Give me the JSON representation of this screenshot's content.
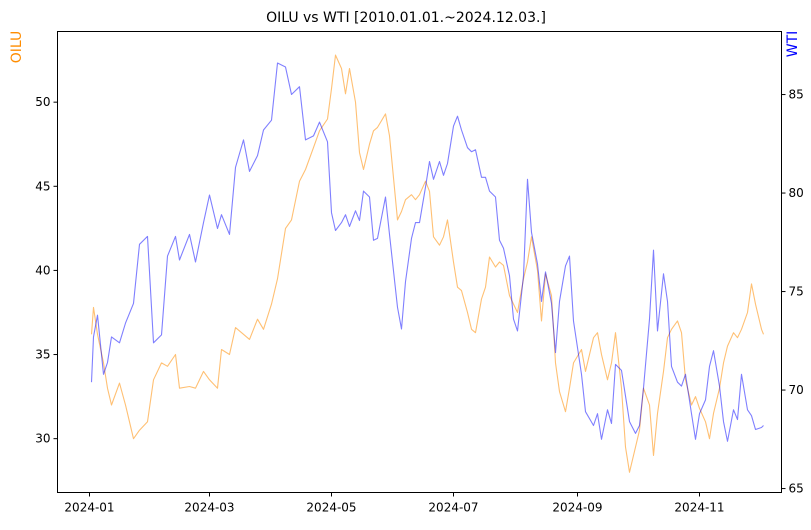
{
  "chart_data": {
    "type": "line",
    "title": "OILU vs WTI [2010.01.01.~2024.12.03.]",
    "xlabel": "",
    "x_ticks": [
      "2024-01",
      "2024-03",
      "2024-05",
      "2024-07",
      "2024-09",
      "2024-11"
    ],
    "x_range": [
      "2023-12-16",
      "2024-12-12"
    ],
    "grid": false,
    "y_left": {
      "label": "OILU",
      "label_color": "#ff8c00",
      "range": [
        26.8,
        54.2
      ],
      "ticks": [
        30,
        35,
        40,
        45,
        50
      ]
    },
    "y_right": {
      "label": "WTI",
      "label_color": "#0000ff",
      "range": [
        64.8,
        88.2
      ],
      "ticks": [
        65,
        70,
        75,
        80,
        85
      ]
    },
    "series": [
      {
        "name": "OILU",
        "axis": "left",
        "color": "#ff8c00",
        "points": [
          [
            "2024-01-02",
            36.2
          ],
          [
            "2024-01-03",
            37.8
          ],
          [
            "2024-01-05",
            36.2
          ],
          [
            "2024-01-08",
            34.5
          ],
          [
            "2024-01-10",
            33.0
          ],
          [
            "2024-01-12",
            32.0
          ],
          [
            "2024-01-16",
            33.3
          ],
          [
            "2024-01-19",
            32.0
          ],
          [
            "2024-01-23",
            30.0
          ],
          [
            "2024-01-26",
            30.5
          ],
          [
            "2024-01-30",
            31.0
          ],
          [
            "2024-02-02",
            33.5
          ],
          [
            "2024-02-06",
            34.5
          ],
          [
            "2024-02-09",
            34.3
          ],
          [
            "2024-02-13",
            35.0
          ],
          [
            "2024-02-15",
            33.0
          ],
          [
            "2024-02-20",
            33.1
          ],
          [
            "2024-02-23",
            33.0
          ],
          [
            "2024-02-27",
            34.0
          ],
          [
            "2024-03-01",
            33.5
          ],
          [
            "2024-03-05",
            33.0
          ],
          [
            "2024-03-07",
            35.3
          ],
          [
            "2024-03-11",
            35.0
          ],
          [
            "2024-03-14",
            36.6
          ],
          [
            "2024-03-18",
            36.2
          ],
          [
            "2024-03-21",
            35.9
          ],
          [
            "2024-03-25",
            37.1
          ],
          [
            "2024-03-28",
            36.5
          ],
          [
            "2024-04-01",
            38.0
          ],
          [
            "2024-04-04",
            39.5
          ],
          [
            "2024-04-08",
            42.5
          ],
          [
            "2024-04-11",
            43.0
          ],
          [
            "2024-04-15",
            45.3
          ],
          [
            "2024-04-18",
            46.0
          ],
          [
            "2024-04-22",
            47.3
          ],
          [
            "2024-04-25",
            48.3
          ],
          [
            "2024-04-29",
            49.0
          ],
          [
            "2024-05-01",
            50.8
          ],
          [
            "2024-05-03",
            52.8
          ],
          [
            "2024-05-06",
            52.0
          ],
          [
            "2024-05-08",
            50.5
          ],
          [
            "2024-05-10",
            52.0
          ],
          [
            "2024-05-13",
            50.0
          ],
          [
            "2024-05-15",
            47.0
          ],
          [
            "2024-05-17",
            46.0
          ],
          [
            "2024-05-20",
            47.5
          ],
          [
            "2024-05-22",
            48.3
          ],
          [
            "2024-05-24",
            48.5
          ],
          [
            "2024-05-28",
            49.3
          ],
          [
            "2024-05-30",
            48.0
          ],
          [
            "2024-06-03",
            43.0
          ],
          [
            "2024-06-05",
            43.5
          ],
          [
            "2024-06-07",
            44.2
          ],
          [
            "2024-06-10",
            44.5
          ],
          [
            "2024-06-12",
            44.2
          ],
          [
            "2024-06-14",
            44.5
          ],
          [
            "2024-06-17",
            45.3
          ],
          [
            "2024-06-19",
            44.7
          ],
          [
            "2024-06-21",
            42.0
          ],
          [
            "2024-06-24",
            41.5
          ],
          [
            "2024-06-26",
            42.0
          ],
          [
            "2024-06-28",
            43.0
          ],
          [
            "2024-07-01",
            40.5
          ],
          [
            "2024-07-03",
            39.0
          ],
          [
            "2024-07-05",
            38.8
          ],
          [
            "2024-07-08",
            37.5
          ],
          [
            "2024-07-10",
            36.5
          ],
          [
            "2024-07-12",
            36.3
          ],
          [
            "2024-07-15",
            38.3
          ],
          [
            "2024-07-17",
            39.0
          ],
          [
            "2024-07-19",
            40.8
          ],
          [
            "2024-07-22",
            40.2
          ],
          [
            "2024-07-24",
            40.5
          ],
          [
            "2024-07-26",
            40.3
          ],
          [
            "2024-07-29",
            38.5
          ],
          [
            "2024-07-31",
            38.0
          ],
          [
            "2024-08-02",
            37.5
          ],
          [
            "2024-08-05",
            39.5
          ],
          [
            "2024-08-07",
            40.5
          ],
          [
            "2024-08-09",
            42.0
          ],
          [
            "2024-08-12",
            40.0
          ],
          [
            "2024-08-14",
            37.0
          ],
          [
            "2024-08-16",
            39.8
          ],
          [
            "2024-08-19",
            38.5
          ],
          [
            "2024-08-21",
            34.5
          ],
          [
            "2024-08-23",
            32.8
          ],
          [
            "2024-08-26",
            31.6
          ],
          [
            "2024-08-28",
            33.0
          ],
          [
            "2024-08-30",
            34.5
          ],
          [
            "2024-09-03",
            35.3
          ],
          [
            "2024-09-05",
            34.0
          ],
          [
            "2024-09-09",
            36.0
          ],
          [
            "2024-09-11",
            36.3
          ],
          [
            "2024-09-13",
            35.0
          ],
          [
            "2024-09-16",
            33.5
          ],
          [
            "2024-09-18",
            34.5
          ],
          [
            "2024-09-20",
            36.3
          ],
          [
            "2024-09-23",
            33.0
          ],
          [
            "2024-09-25",
            29.5
          ],
          [
            "2024-09-27",
            28.0
          ],
          [
            "2024-09-30",
            29.5
          ],
          [
            "2024-10-02",
            30.5
          ],
          [
            "2024-10-04",
            33.0
          ],
          [
            "2024-10-07",
            32.0
          ],
          [
            "2024-10-09",
            29.0
          ],
          [
            "2024-10-11",
            31.5
          ],
          [
            "2024-10-14",
            34.0
          ],
          [
            "2024-10-16",
            36.0
          ],
          [
            "2024-10-18",
            36.5
          ],
          [
            "2024-10-21",
            37.0
          ],
          [
            "2024-10-23",
            36.3
          ],
          [
            "2024-10-25",
            33.5
          ],
          [
            "2024-10-28",
            32.0
          ],
          [
            "2024-10-30",
            32.5
          ],
          [
            "2024-11-01",
            31.8
          ],
          [
            "2024-11-04",
            31.0
          ],
          [
            "2024-11-06",
            30.0
          ],
          [
            "2024-11-08",
            31.5
          ],
          [
            "2024-11-11",
            33.0
          ],
          [
            "2024-11-13",
            34.5
          ],
          [
            "2024-11-15",
            35.5
          ],
          [
            "2024-11-18",
            36.3
          ],
          [
            "2024-11-20",
            36.0
          ],
          [
            "2024-11-22",
            36.5
          ],
          [
            "2024-11-25",
            37.5
          ],
          [
            "2024-11-27",
            39.2
          ],
          [
            "2024-11-29",
            38.0
          ],
          [
            "2024-12-02",
            36.5
          ],
          [
            "2024-12-03",
            36.2
          ]
        ]
      },
      {
        "name": "WTI",
        "axis": "right",
        "color": "#0000ff",
        "points": [
          [
            "2024-01-02",
            70.4
          ],
          [
            "2024-01-03",
            72.7
          ],
          [
            "2024-01-05",
            73.8
          ],
          [
            "2024-01-08",
            70.8
          ],
          [
            "2024-01-10",
            71.4
          ],
          [
            "2024-01-12",
            72.7
          ],
          [
            "2024-01-16",
            72.4
          ],
          [
            "2024-01-19",
            73.4
          ],
          [
            "2024-01-23",
            74.4
          ],
          [
            "2024-01-26",
            77.4
          ],
          [
            "2024-01-30",
            77.8
          ],
          [
            "2024-02-02",
            72.4
          ],
          [
            "2024-02-06",
            72.8
          ],
          [
            "2024-02-09",
            76.8
          ],
          [
            "2024-02-13",
            77.8
          ],
          [
            "2024-02-15",
            76.6
          ],
          [
            "2024-02-20",
            77.9
          ],
          [
            "2024-02-23",
            76.5
          ],
          [
            "2024-02-27",
            78.5
          ],
          [
            "2024-03-01",
            79.9
          ],
          [
            "2024-03-05",
            78.2
          ],
          [
            "2024-03-07",
            78.9
          ],
          [
            "2024-03-11",
            77.9
          ],
          [
            "2024-03-14",
            81.3
          ],
          [
            "2024-03-18",
            82.7
          ],
          [
            "2024-03-21",
            81.1
          ],
          [
            "2024-03-25",
            81.9
          ],
          [
            "2024-03-28",
            83.2
          ],
          [
            "2024-04-01",
            83.7
          ],
          [
            "2024-04-04",
            86.6
          ],
          [
            "2024-04-08",
            86.4
          ],
          [
            "2024-04-11",
            85.0
          ],
          [
            "2024-04-15",
            85.4
          ],
          [
            "2024-04-18",
            82.7
          ],
          [
            "2024-04-22",
            82.9
          ],
          [
            "2024-04-25",
            83.6
          ],
          [
            "2024-04-29",
            82.6
          ],
          [
            "2024-05-01",
            79.0
          ],
          [
            "2024-05-03",
            78.1
          ],
          [
            "2024-05-06",
            78.5
          ],
          [
            "2024-05-08",
            78.9
          ],
          [
            "2024-05-10",
            78.3
          ],
          [
            "2024-05-13",
            79.1
          ],
          [
            "2024-05-15",
            78.6
          ],
          [
            "2024-05-17",
            80.1
          ],
          [
            "2024-05-20",
            79.8
          ],
          [
            "2024-05-22",
            77.6
          ],
          [
            "2024-05-24",
            77.7
          ],
          [
            "2024-05-28",
            79.8
          ],
          [
            "2024-05-30",
            77.9
          ],
          [
            "2024-06-03",
            74.2
          ],
          [
            "2024-06-05",
            73.1
          ],
          [
            "2024-06-07",
            75.5
          ],
          [
            "2024-06-10",
            77.7
          ],
          [
            "2024-06-12",
            78.5
          ],
          [
            "2024-06-14",
            78.5
          ],
          [
            "2024-06-17",
            80.3
          ],
          [
            "2024-06-19",
            81.6
          ],
          [
            "2024-06-21",
            80.7
          ],
          [
            "2024-06-24",
            81.6
          ],
          [
            "2024-06-26",
            80.9
          ],
          [
            "2024-06-28",
            81.5
          ],
          [
            "2024-07-01",
            83.4
          ],
          [
            "2024-07-03",
            83.9
          ],
          [
            "2024-07-05",
            83.2
          ],
          [
            "2024-07-08",
            82.3
          ],
          [
            "2024-07-10",
            82.1
          ],
          [
            "2024-07-12",
            82.2
          ],
          [
            "2024-07-15",
            80.8
          ],
          [
            "2024-07-17",
            80.8
          ],
          [
            "2024-07-19",
            80.1
          ],
          [
            "2024-07-22",
            79.8
          ],
          [
            "2024-07-24",
            77.6
          ],
          [
            "2024-07-26",
            77.2
          ],
          [
            "2024-07-29",
            75.8
          ],
          [
            "2024-07-31",
            73.6
          ],
          [
            "2024-08-02",
            73.0
          ],
          [
            "2024-08-05",
            75.8
          ],
          [
            "2024-08-07",
            80.7
          ],
          [
            "2024-08-09",
            78.0
          ],
          [
            "2024-08-12",
            76.4
          ],
          [
            "2024-08-14",
            74.5
          ],
          [
            "2024-08-16",
            76.0
          ],
          [
            "2024-08-19",
            74.4
          ],
          [
            "2024-08-21",
            71.9
          ],
          [
            "2024-08-23",
            74.5
          ],
          [
            "2024-08-26",
            76.3
          ],
          [
            "2024-08-28",
            76.8
          ],
          [
            "2024-08-30",
            73.5
          ],
          [
            "2024-09-03",
            70.8
          ],
          [
            "2024-09-05",
            68.9
          ],
          [
            "2024-09-09",
            68.2
          ],
          [
            "2024-09-11",
            68.8
          ],
          [
            "2024-09-13",
            67.5
          ],
          [
            "2024-09-16",
            69.0
          ],
          [
            "2024-09-18",
            68.3
          ],
          [
            "2024-09-20",
            71.3
          ],
          [
            "2024-09-23",
            71.0
          ],
          [
            "2024-09-25",
            69.7
          ],
          [
            "2024-09-27",
            68.4
          ],
          [
            "2024-09-30",
            67.8
          ],
          [
            "2024-10-02",
            68.2
          ],
          [
            "2024-10-04",
            70.1
          ],
          [
            "2024-10-07",
            73.6
          ],
          [
            "2024-10-09",
            77.1
          ],
          [
            "2024-10-11",
            73.0
          ],
          [
            "2024-10-14",
            75.9
          ],
          [
            "2024-10-16",
            74.5
          ],
          [
            "2024-10-18",
            71.2
          ],
          [
            "2024-10-21",
            70.4
          ],
          [
            "2024-10-23",
            70.2
          ],
          [
            "2024-10-25",
            70.8
          ],
          [
            "2024-10-28",
            68.8
          ],
          [
            "2024-10-30",
            67.5
          ],
          [
            "2024-11-01",
            68.8
          ],
          [
            "2024-11-04",
            69.5
          ],
          [
            "2024-11-06",
            71.2
          ],
          [
            "2024-11-08",
            72.0
          ],
          [
            "2024-11-11",
            70.2
          ],
          [
            "2024-11-13",
            68.4
          ],
          [
            "2024-11-15",
            67.4
          ],
          [
            "2024-11-18",
            69.0
          ],
          [
            "2024-11-20",
            68.5
          ],
          [
            "2024-11-22",
            70.8
          ],
          [
            "2024-11-25",
            69.0
          ],
          [
            "2024-11-27",
            68.7
          ],
          [
            "2024-11-29",
            68.0
          ],
          [
            "2024-12-02",
            68.1
          ],
          [
            "2024-12-03",
            68.2
          ]
        ]
      }
    ]
  }
}
